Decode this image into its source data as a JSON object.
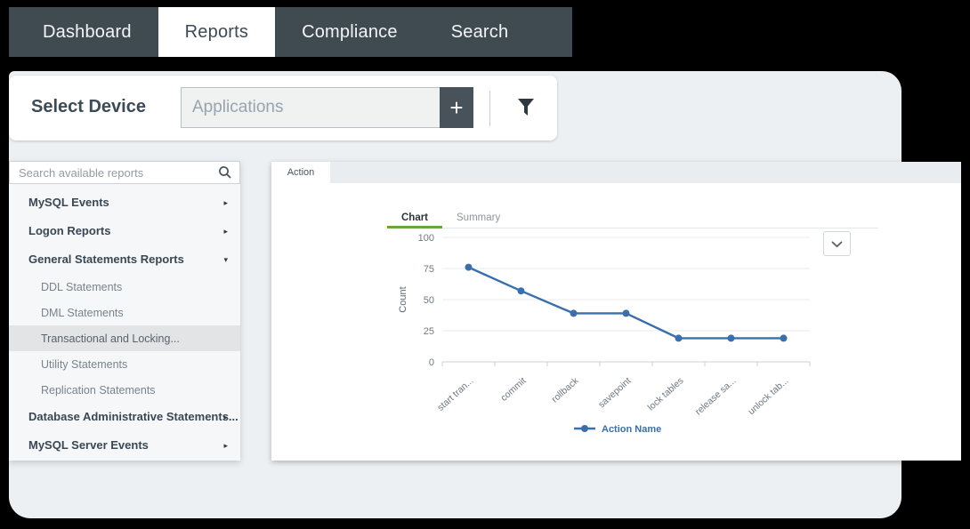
{
  "nav": {
    "items": [
      {
        "label": "Dashboard",
        "active": false
      },
      {
        "label": "Reports",
        "active": true
      },
      {
        "label": "Compliance",
        "active": false
      },
      {
        "label": "Search",
        "active": false
      }
    ],
    "bg_color": "#3f4a51",
    "active_bg": "#ffffff"
  },
  "device_bar": {
    "label": "Select Device",
    "input_value": "Applications",
    "add_button_label": "+"
  },
  "sidebar": {
    "search_placeholder": "Search available reports",
    "caret_collapsed": "▸",
    "caret_expanded": "▾",
    "items": [
      {
        "label": "MySQL Events",
        "type": "group",
        "state": "collapsed"
      },
      {
        "label": "Logon Reports",
        "type": "group",
        "state": "collapsed"
      },
      {
        "label": "General Statements Reports",
        "type": "group",
        "state": "expanded"
      },
      {
        "label": "DDL Statements",
        "type": "sub",
        "selected": false
      },
      {
        "label": "DML Statements",
        "type": "sub",
        "selected": false
      },
      {
        "label": "Transactional and Locking...",
        "type": "sub",
        "selected": true
      },
      {
        "label": "Utility Statements",
        "type": "sub",
        "selected": false
      },
      {
        "label": "Replication Statements",
        "type": "sub",
        "selected": false
      },
      {
        "label": "Database Administrative Statements...",
        "type": "group",
        "state": "collapsed"
      },
      {
        "label": "MySQL Server Events",
        "type": "group",
        "state": "collapsed"
      }
    ]
  },
  "main": {
    "panel_tab": "Action",
    "view_tabs": [
      {
        "label": "Chart",
        "active": true
      },
      {
        "label": "Summary",
        "active": false
      }
    ],
    "accent_green": "#68a53d"
  },
  "chart_data": {
    "type": "line",
    "categories": [
      "start tran...",
      "commit",
      "rollback",
      "savepoint",
      "lock tables",
      "release sa...",
      "unlock tab..."
    ],
    "values": [
      76,
      57,
      39,
      39,
      19,
      19,
      19
    ],
    "title": "",
    "xlabel": "",
    "ylabel": "Count",
    "ylim": [
      0,
      100
    ],
    "yticks": [
      0,
      25,
      50,
      75,
      100
    ],
    "grid": true,
    "legend_position": "bottom",
    "line_color": "#3a6fae",
    "legend": [
      {
        "name": "Action Name",
        "color": "#3a6fae"
      }
    ]
  }
}
